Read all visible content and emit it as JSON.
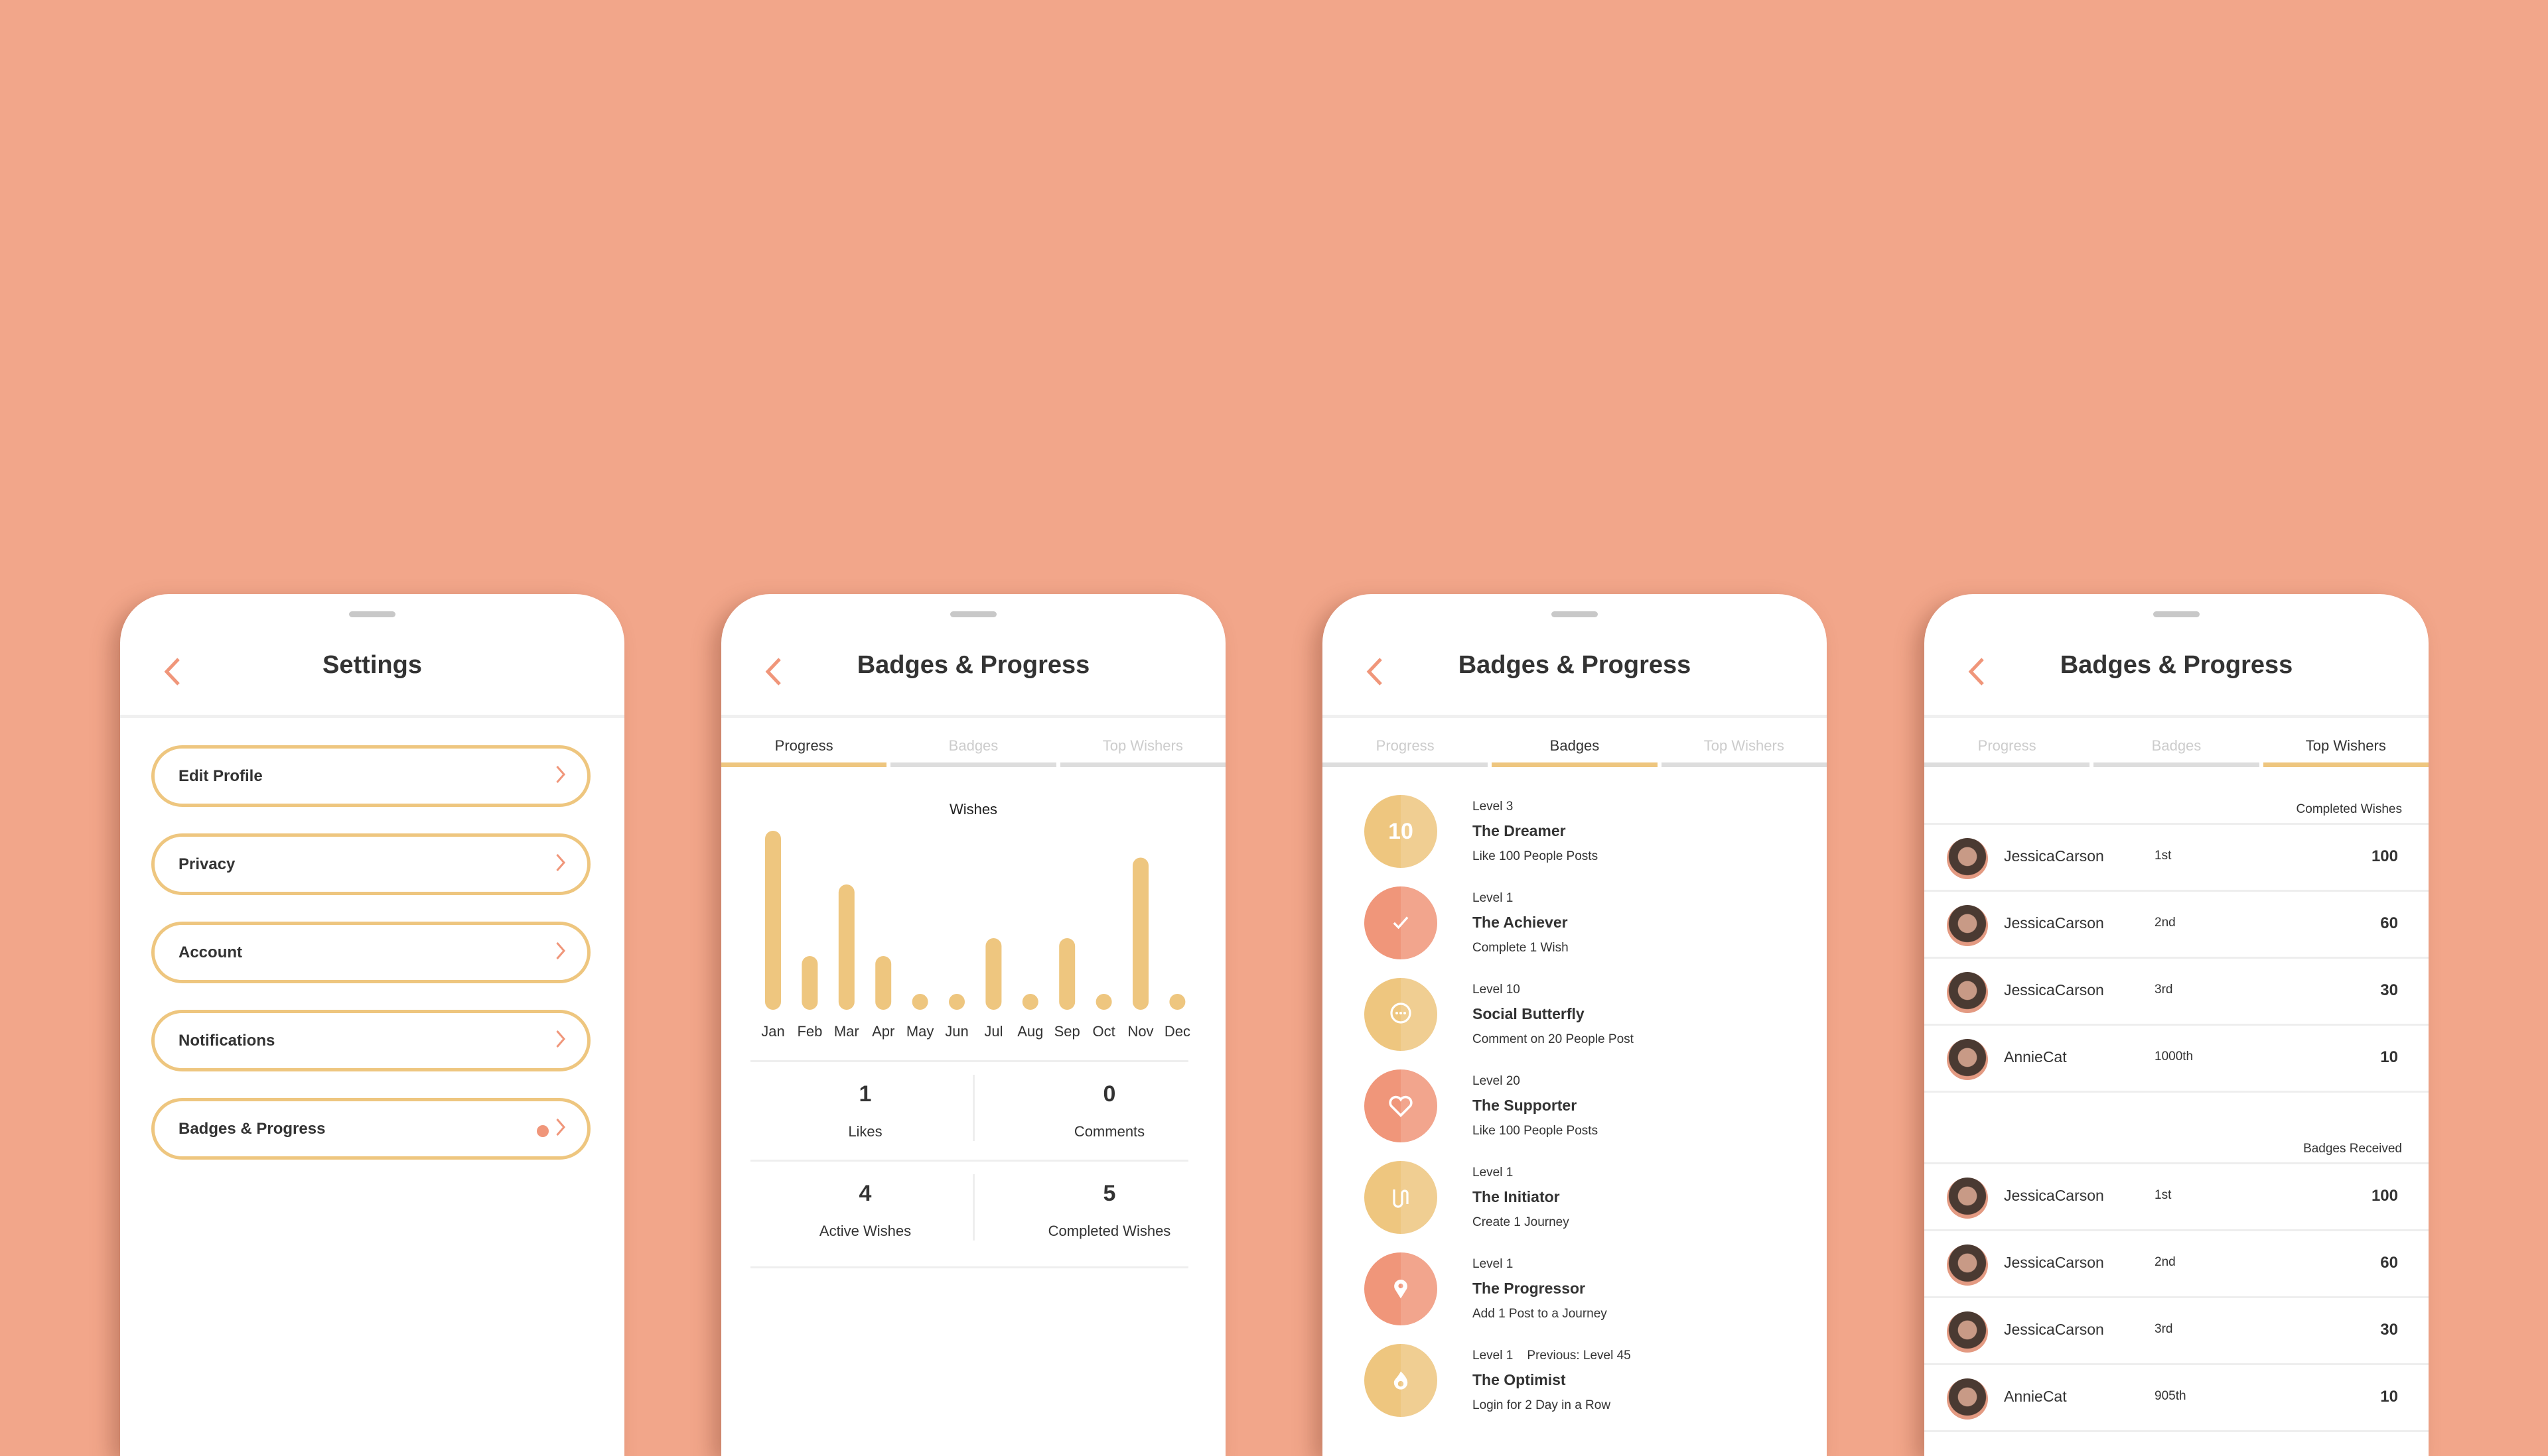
{
  "colors": {
    "background": "#F2A68A",
    "accent_orange": "#F0967A",
    "accent_yellow": "#EEC67F"
  },
  "settings": {
    "title": "Settings",
    "items": [
      {
        "label": "Edit Profile"
      },
      {
        "label": "Privacy"
      },
      {
        "label": "Account"
      },
      {
        "label": "Notifications"
      },
      {
        "label": "Badges & Progress",
        "has_notification_dot": true
      }
    ]
  },
  "badges_title": "Badges & Progress",
  "tabs": [
    "Progress",
    "Badges",
    "Top Wishers"
  ],
  "chart_data": {
    "type": "bar",
    "title": "Wishes",
    "categories": [
      "Jan",
      "Feb",
      "Mar",
      "Apr",
      "May",
      "Jun",
      "Jul",
      "Aug",
      "Sep",
      "Oct",
      "Nov",
      "Dec"
    ],
    "values": [
      10,
      3,
      7,
      3,
      0,
      0,
      4,
      0,
      4,
      0,
      8.5,
      0
    ],
    "grid": false
  },
  "stats": [
    {
      "value": "1",
      "label": "Likes"
    },
    {
      "value": "0",
      "label": "Comments"
    },
    {
      "value": "4",
      "label": "Active Wishes"
    },
    {
      "value": "5",
      "label": "Completed Wishes"
    }
  ],
  "badges": [
    {
      "level": "Level 3",
      "name": "The Dreamer",
      "desc": "Like 100 People Posts",
      "icon": "number-10",
      "text": "10",
      "color": "yellow"
    },
    {
      "level": "Level 1",
      "name": "The Achiever",
      "desc": "Complete 1 Wish",
      "icon": "check-icon",
      "color": "orange"
    },
    {
      "level": "Level 10",
      "name": "Social Butterfly",
      "desc": "Comment on 20 People Post",
      "icon": "chat-bubble-icon",
      "color": "yellow"
    },
    {
      "level": "Level 20",
      "name": "The Supporter",
      "desc": "Like 100 People Posts",
      "icon": "heart-icon",
      "color": "orange"
    },
    {
      "level": "Level 1",
      "name": "The Initiator",
      "desc": "Create 1 Journey",
      "icon": "route-icon",
      "color": "yellow"
    },
    {
      "level": "Level 1",
      "name": "The Progressor",
      "desc": "Add 1 Post to a Journey",
      "icon": "map-pin-icon",
      "color": "orange"
    },
    {
      "level": "Level 1",
      "previous": "Previous: Level  45",
      "name": "The Optimist",
      "desc": "Login for 2 Day in a Row",
      "icon": "flame-icon",
      "color": "yellow"
    }
  ],
  "top_wishers": {
    "completed_title": "Completed Wishes",
    "completed": [
      {
        "name": "JessicaCarson",
        "rank": "1st",
        "value": "100"
      },
      {
        "name": "JessicaCarson",
        "rank": "2nd",
        "value": "60"
      },
      {
        "name": "JessicaCarson",
        "rank": "3rd",
        "value": "30"
      },
      {
        "name": "AnnieCat",
        "rank": "1000th",
        "value": "10"
      }
    ],
    "badges_title": "Badges Received",
    "badges": [
      {
        "name": "JessicaCarson",
        "rank": "1st",
        "value": "100"
      },
      {
        "name": "JessicaCarson",
        "rank": "2nd",
        "value": "60"
      },
      {
        "name": "JessicaCarson",
        "rank": "3rd",
        "value": "30"
      },
      {
        "name": "AnnieCat",
        "rank": "905th",
        "value": "10"
      }
    ]
  }
}
